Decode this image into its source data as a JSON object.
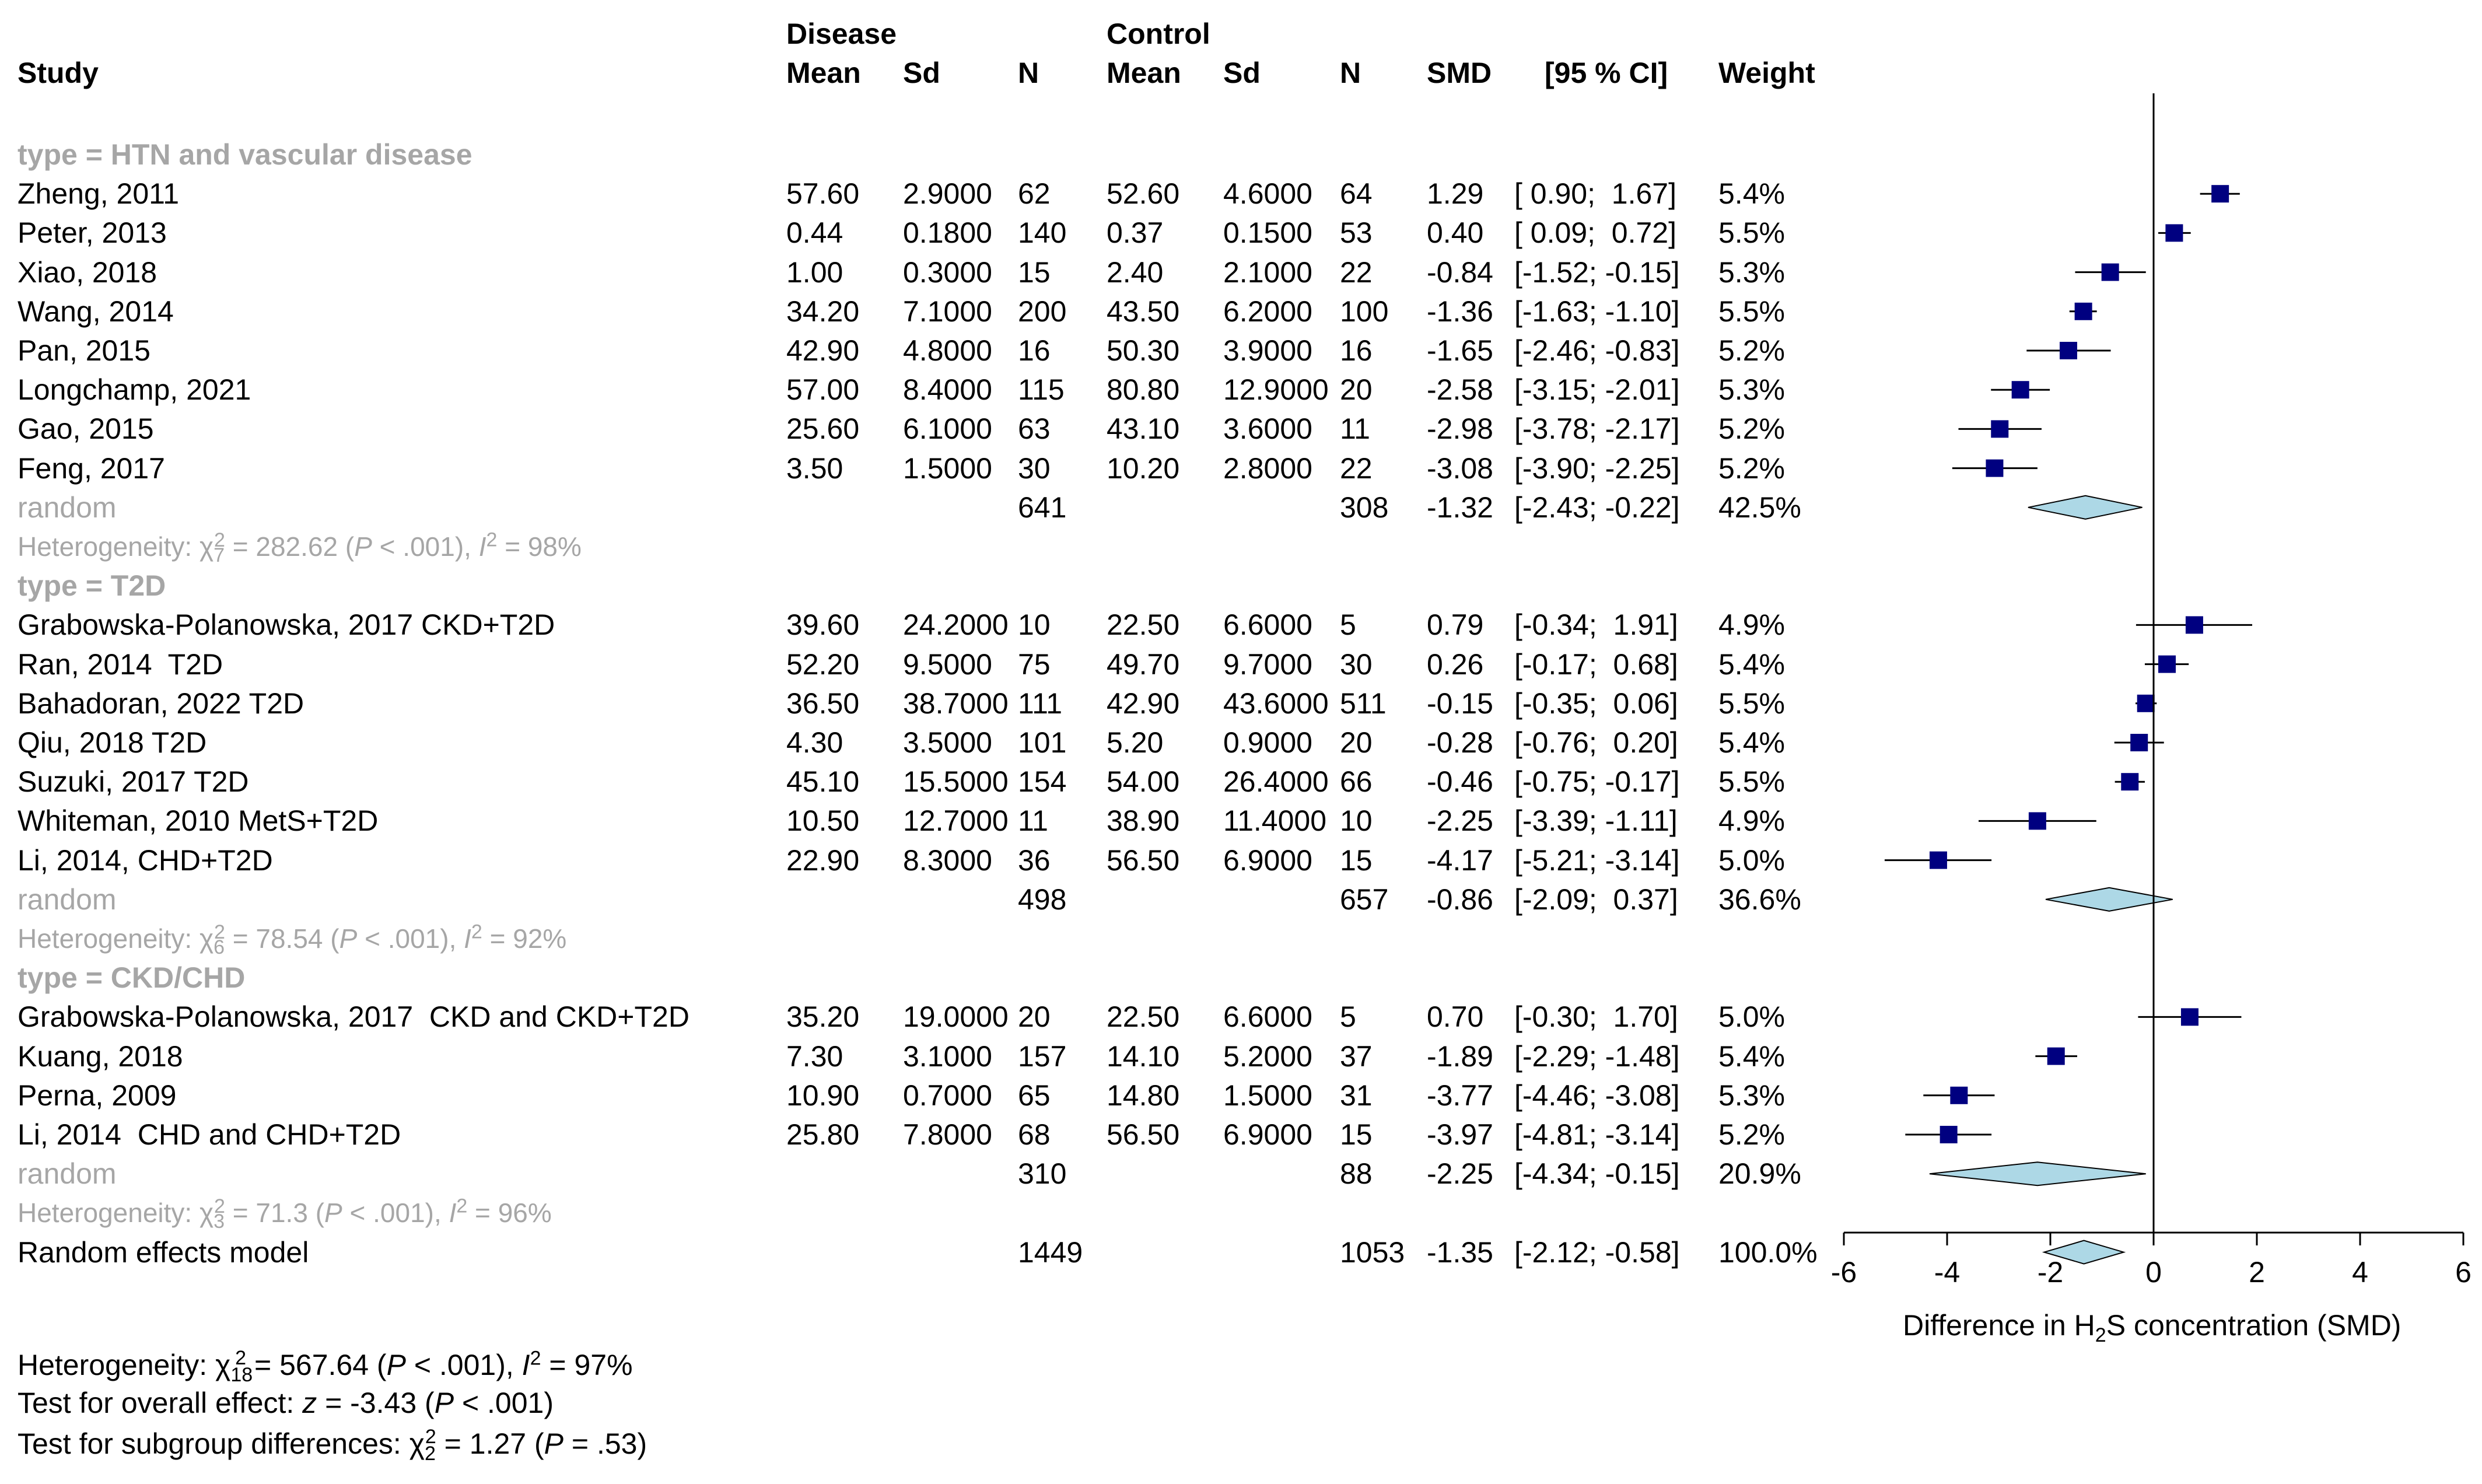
{
  "header": {
    "disease": "Disease",
    "control": "Control",
    "study": "Study",
    "mean": "Mean",
    "sd": "Sd",
    "n": "N",
    "smd": "SMD",
    "ci": "[95 % CI]",
    "weight": "Weight"
  },
  "chart_data": {
    "type": "forest",
    "xlabel_pre": "Difference in H",
    "xlabel_sub": "2",
    "xlabel_post": "S concentration (SMD)",
    "xlim": [
      -6,
      6
    ],
    "ticks": [
      "-6",
      "-4",
      "-2",
      "0",
      "2",
      "4",
      "6"
    ],
    "ticks_values": [
      -6,
      -4,
      -2,
      0,
      2,
      4,
      6
    ],
    "colors": {
      "square": "#000080",
      "diamond": "#add8e6",
      "grey": "#a6a6a6"
    },
    "rows": [
      {
        "kind": "group",
        "label": "type = HTN and vascular disease"
      },
      {
        "kind": "study",
        "study": "Zheng, 2011",
        "m1": "57.60",
        "s1": "2.9000",
        "n1": "62",
        "m2": "52.60",
        "s2": "4.6000",
        "n2": "64",
        "smd": "1.29",
        "ci": "[ 0.90;  1.67]",
        "w": "5.4%",
        "est": 1.29,
        "lo": 0.9,
        "hi": 1.67
      },
      {
        "kind": "study",
        "study": "Peter, 2013",
        "m1": "0.44",
        "s1": "0.1800",
        "n1": "140",
        "m2": "0.37",
        "s2": "0.1500",
        "n2": "53",
        "smd": "0.40",
        "ci": "[ 0.09;  0.72]",
        "w": "5.5%",
        "est": 0.4,
        "lo": 0.09,
        "hi": 0.72
      },
      {
        "kind": "study",
        "study": "Xiao, 2018",
        "m1": "1.00",
        "s1": "0.3000",
        "n1": "15",
        "m2": "2.40",
        "s2": "2.1000",
        "n2": "22",
        "smd": "-0.84",
        "ci": "[-1.52; -0.15]",
        "w": "5.3%",
        "est": -0.84,
        "lo": -1.52,
        "hi": -0.15
      },
      {
        "kind": "study",
        "study": "Wang, 2014",
        "m1": "34.20",
        "s1": "7.1000",
        "n1": "200",
        "m2": "43.50",
        "s2": "6.2000",
        "n2": "100",
        "smd": "-1.36",
        "ci": "[-1.63; -1.10]",
        "w": "5.5%",
        "est": -1.36,
        "lo": -1.63,
        "hi": -1.1
      },
      {
        "kind": "study",
        "study": "Pan, 2015",
        "m1": "42.90",
        "s1": "4.8000",
        "n1": "16",
        "m2": "50.30",
        "s2": "3.9000",
        "n2": "16",
        "smd": "-1.65",
        "ci": "[-2.46; -0.83]",
        "w": "5.2%",
        "est": -1.65,
        "lo": -2.46,
        "hi": -0.83
      },
      {
        "kind": "study",
        "study": "Longchamp, 2021",
        "m1": "57.00",
        "s1": "8.4000",
        "n1": "115",
        "m2": "80.80",
        "s2": "12.9000",
        "n2": "20",
        "smd": "-2.58",
        "ci": "[-3.15; -2.01]",
        "w": "5.3%",
        "est": -2.58,
        "lo": -3.15,
        "hi": -2.01
      },
      {
        "kind": "study",
        "study": "Gao, 2015",
        "m1": "25.60",
        "s1": "6.1000",
        "n1": "63",
        "m2": "43.10",
        "s2": "3.6000",
        "n2": "11",
        "smd": "-2.98",
        "ci": "[-3.78; -2.17]",
        "w": "5.2%",
        "est": -2.98,
        "lo": -3.78,
        "hi": -2.17
      },
      {
        "kind": "study",
        "study": "Feng, 2017",
        "m1": "3.50",
        "s1": "1.5000",
        "n1": "30",
        "m2": "10.20",
        "s2": "2.8000",
        "n2": "22",
        "smd": "-3.08",
        "ci": "[-3.90; -2.25]",
        "w": "5.2%",
        "est": -3.08,
        "lo": -3.9,
        "hi": -2.25
      },
      {
        "kind": "random",
        "study": "random",
        "n1": "641",
        "n2": "308",
        "smd": "-1.32",
        "ci": "[-2.43; -0.22]",
        "w": "42.5%",
        "est": -1.32,
        "lo": -2.43,
        "hi": -0.22
      },
      {
        "kind": "het",
        "pre": "Heterogeneity: ",
        "chi": "χ",
        "df": "7",
        "val": " = 282.62 (",
        "p": "P",
        "pval": " < .001), ",
        "i": "I",
        "ival": " = 98%"
      },
      {
        "kind": "group",
        "label": "type = T2D"
      },
      {
        "kind": "study",
        "study": "Grabowska-Polanowska, 2017 CKD+T2D",
        "m1": "39.60",
        "s1": "24.2000",
        "n1": "10",
        "m2": "22.50",
        "s2": "6.6000",
        "n2": "5",
        "smd": "0.79",
        "ci": "[-0.34;  1.91]",
        "w": "4.9%",
        "est": 0.79,
        "lo": -0.34,
        "hi": 1.91
      },
      {
        "kind": "study",
        "study": "Ran, 2014  T2D",
        "m1": "52.20",
        "s1": "9.5000",
        "n1": "75",
        "m2": "49.70",
        "s2": "9.7000",
        "n2": "30",
        "smd": "0.26",
        "ci": "[-0.17;  0.68]",
        "w": "5.4%",
        "est": 0.26,
        "lo": -0.17,
        "hi": 0.68
      },
      {
        "kind": "study",
        "study": "Bahadoran, 2022 T2D",
        "m1": "36.50",
        "s1": "38.7000",
        "n1": "111",
        "m2": "42.90",
        "s2": "43.6000",
        "n2": "511",
        "smd": "-0.15",
        "ci": "[-0.35;  0.06]",
        "w": "5.5%",
        "est": -0.15,
        "lo": -0.35,
        "hi": 0.06
      },
      {
        "kind": "study",
        "study": "Qiu, 2018 T2D",
        "m1": "4.30",
        "s1": "3.5000",
        "n1": "101",
        "m2": "5.20",
        "s2": "0.9000",
        "n2": "20",
        "smd": "-0.28",
        "ci": "[-0.76;  0.20]",
        "w": "5.4%",
        "est": -0.28,
        "lo": -0.76,
        "hi": 0.2
      },
      {
        "kind": "study",
        "study": "Suzuki, 2017 T2D",
        "m1": "45.10",
        "s1": "15.5000",
        "n1": "154",
        "m2": "54.00",
        "s2": "26.4000",
        "n2": "66",
        "smd": "-0.46",
        "ci": "[-0.75; -0.17]",
        "w": "5.5%",
        "est": -0.46,
        "lo": -0.75,
        "hi": -0.17
      },
      {
        "kind": "study",
        "study": "Whiteman, 2010 MetS+T2D",
        "m1": "10.50",
        "s1": "12.7000",
        "n1": "11",
        "m2": "38.90",
        "s2": "11.4000",
        "n2": "10",
        "smd": "-2.25",
        "ci": "[-3.39; -1.11]",
        "w": "4.9%",
        "est": -2.25,
        "lo": -3.39,
        "hi": -1.11
      },
      {
        "kind": "study",
        "study": "Li, 2014, CHD+T2D",
        "m1": "22.90",
        "s1": "8.3000",
        "n1": "36",
        "m2": "56.50",
        "s2": "6.9000",
        "n2": "15",
        "smd": "-4.17",
        "ci": "[-5.21; -3.14]",
        "w": "5.0%",
        "est": -4.17,
        "lo": -5.21,
        "hi": -3.14
      },
      {
        "kind": "random",
        "study": "random",
        "n1": "498",
        "n2": "657",
        "smd": "-0.86",
        "ci": "[-2.09;  0.37]",
        "w": "36.6%",
        "est": -0.86,
        "lo": -2.09,
        "hi": 0.37
      },
      {
        "kind": "het",
        "pre": "Heterogeneity: ",
        "chi": "χ",
        "df": "6",
        "val": " = 78.54 (",
        "p": "P",
        "pval": " < .001), ",
        "i": "I",
        "ival": " = 92%"
      },
      {
        "kind": "group",
        "label": "type = CKD/CHD"
      },
      {
        "kind": "study",
        "study": "Grabowska-Polanowska, 2017  CKD and CKD+T2D",
        "m1": "35.20",
        "s1": "19.0000",
        "n1": "20",
        "m2": "22.50",
        "s2": "6.6000",
        "n2": "5",
        "smd": "0.70",
        "ci": "[-0.30;  1.70]",
        "w": "5.0%",
        "est": 0.7,
        "lo": -0.3,
        "hi": 1.7
      },
      {
        "kind": "study",
        "study": "Kuang, 2018",
        "m1": "7.30",
        "s1": "3.1000",
        "n1": "157",
        "m2": "14.10",
        "s2": "5.2000",
        "n2": "37",
        "smd": "-1.89",
        "ci": "[-2.29; -1.48]",
        "w": "5.4%",
        "est": -1.89,
        "lo": -2.29,
        "hi": -1.48
      },
      {
        "kind": "study",
        "study": "Perna, 2009",
        "m1": "10.90",
        "s1": "0.7000",
        "n1": "65",
        "m2": "14.80",
        "s2": "1.5000",
        "n2": "31",
        "smd": "-3.77",
        "ci": "[-4.46; -3.08]",
        "w": "5.3%",
        "est": -3.77,
        "lo": -4.46,
        "hi": -3.08
      },
      {
        "kind": "study",
        "study": "Li, 2014  CHD and CHD+T2D",
        "m1": "25.80",
        "s1": "7.8000",
        "n1": "68",
        "m2": "56.50",
        "s2": "6.9000",
        "n2": "15",
        "smd": "-3.97",
        "ci": "[-4.81; -3.14]",
        "w": "5.2%",
        "est": -3.97,
        "lo": -4.81,
        "hi": -3.14
      },
      {
        "kind": "random",
        "study": "random",
        "n1": "310",
        "n2": "88",
        "smd": "-2.25",
        "ci": "[-4.34; -0.15]",
        "w": "20.9%",
        "est": -2.25,
        "lo": -4.34,
        "hi": -0.15
      },
      {
        "kind": "het",
        "pre": "Heterogeneity: ",
        "chi": "χ",
        "df": "3",
        "val": " = 71.3 (",
        "p": "P",
        "pval": " < .001), ",
        "i": "I",
        "ival": " = 96%"
      },
      {
        "kind": "overall",
        "study": "Random effects model",
        "n1": "1449",
        "n2": "1053",
        "smd": "-1.35",
        "ci": "[-2.12; -0.58]",
        "w": "100.0%",
        "est": -1.35,
        "lo": -2.12,
        "hi": -0.58
      }
    ]
  },
  "footer": {
    "het": {
      "pre": "Heterogeneity: ",
      "chi": "χ",
      "sup": "2",
      "df": "18",
      "val": " = 567.64 (",
      "p": "P",
      "pval": " < .001), ",
      "i": "I",
      "ival": " = 97%"
    },
    "overall": {
      "pre": "Test for overall effect: ",
      "z": "z",
      "val": " = -3.43 (",
      "p": "P",
      "pval": " < .001)"
    },
    "subgroup": {
      "pre": "Test for subgroup differences: ",
      "chi": "χ",
      "sup": "2",
      "df": "2",
      "val": " = 1.27 (",
      "p": "P",
      "pval": " = .53)"
    }
  }
}
